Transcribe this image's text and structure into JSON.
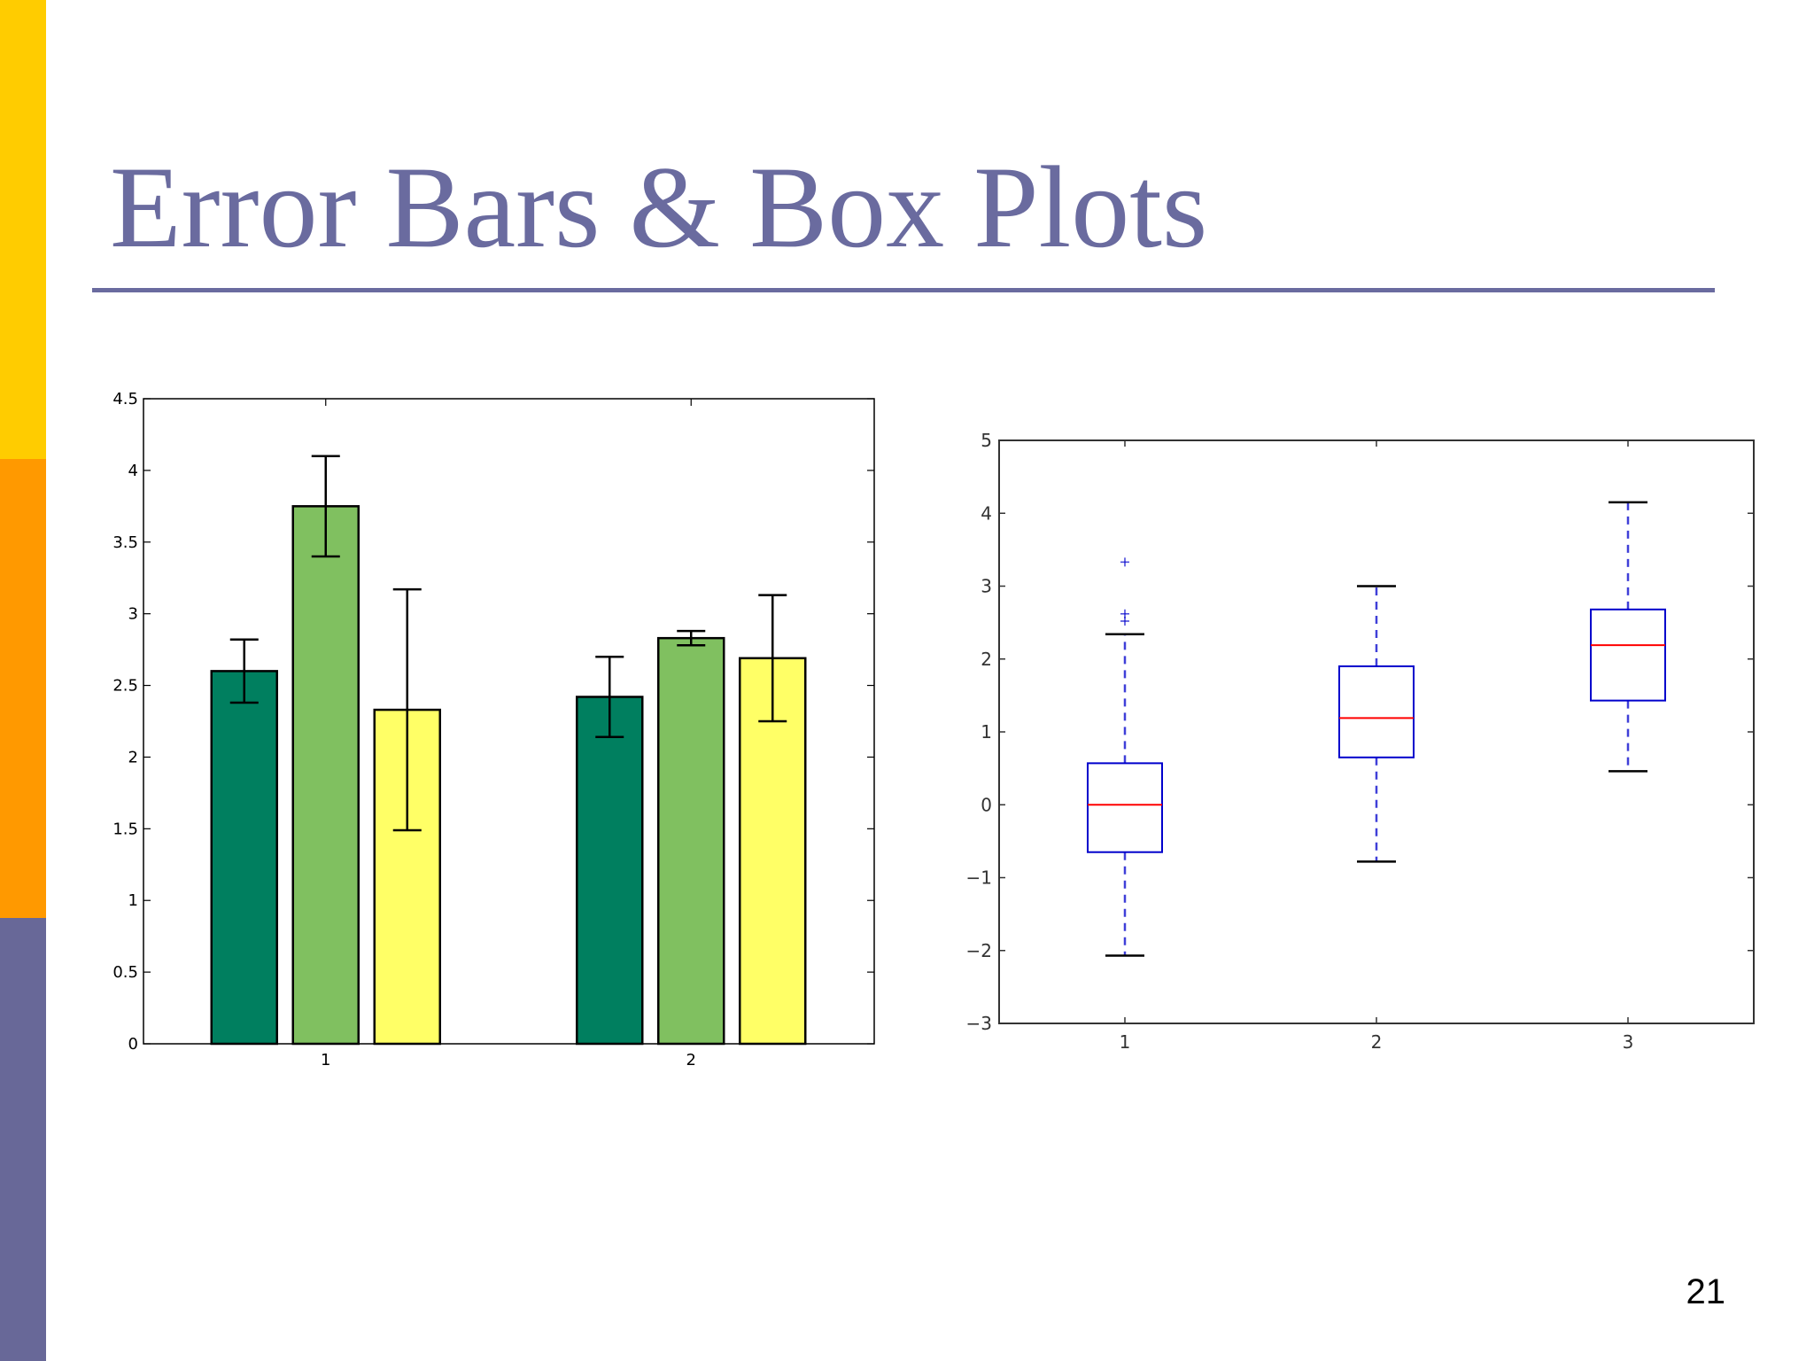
{
  "slide": {
    "title": "Error Bars & Box Plots",
    "page_number": "21",
    "colors": {
      "title": "#6a6b9f",
      "rule": "#6a6b9f",
      "stripe_top": "#ffcc00",
      "stripe_middle": "#ff9900",
      "stripe_bottom": "#686898"
    }
  },
  "chart_data": [
    {
      "type": "bar",
      "title": "",
      "xlabel": "",
      "ylabel": "",
      "categories": [
        "1",
        "2"
      ],
      "ylim": [
        0,
        4.5
      ],
      "yticks": [
        0,
        0.5,
        1,
        1.5,
        2,
        2.5,
        3,
        3.5,
        4,
        4.5
      ],
      "ytick_labels": [
        "0",
        "0.5",
        "1",
        "1.5",
        "2",
        "2.5",
        "3",
        "3.5",
        "4",
        "4.5"
      ],
      "grid": false,
      "series": [
        {
          "color": "#007f5f",
          "values": [
            2.6,
            2.42
          ],
          "errors": [
            0.22,
            0.28
          ]
        },
        {
          "color": "#80c060",
          "values": [
            3.75,
            2.83
          ],
          "errors": [
            0.35,
            0.05
          ]
        },
        {
          "color": "#ffff66",
          "values": [
            2.33,
            2.69
          ],
          "errors": [
            0.84,
            0.44
          ]
        }
      ]
    },
    {
      "type": "box",
      "title": "",
      "xlabel": "",
      "ylabel": "",
      "categories": [
        "1",
        "2",
        "3"
      ],
      "ylim": [
        -3,
        5
      ],
      "yticks": [
        -3,
        -2,
        -1,
        0,
        1,
        2,
        3,
        4,
        5
      ],
      "ytick_labels": [
        "−3",
        "−2",
        "−1",
        "0",
        "1",
        "2",
        "3",
        "4",
        "5"
      ],
      "grid": false,
      "box_color": "#0000cc",
      "median_color": "#ff0000",
      "boxes": [
        {
          "whisker_low": -2.07,
          "q1": -0.65,
          "median": 0.0,
          "q3": 0.57,
          "whisker_high": 2.34,
          "outliers": [
            2.52,
            2.62,
            3.33
          ]
        },
        {
          "whisker_low": -0.78,
          "q1": 0.65,
          "median": 1.19,
          "q3": 1.9,
          "whisker_high": 3.0,
          "outliers": []
        },
        {
          "whisker_low": 0.46,
          "q1": 1.43,
          "median": 2.19,
          "q3": 2.68,
          "whisker_high": 4.15,
          "outliers": []
        }
      ]
    }
  ]
}
